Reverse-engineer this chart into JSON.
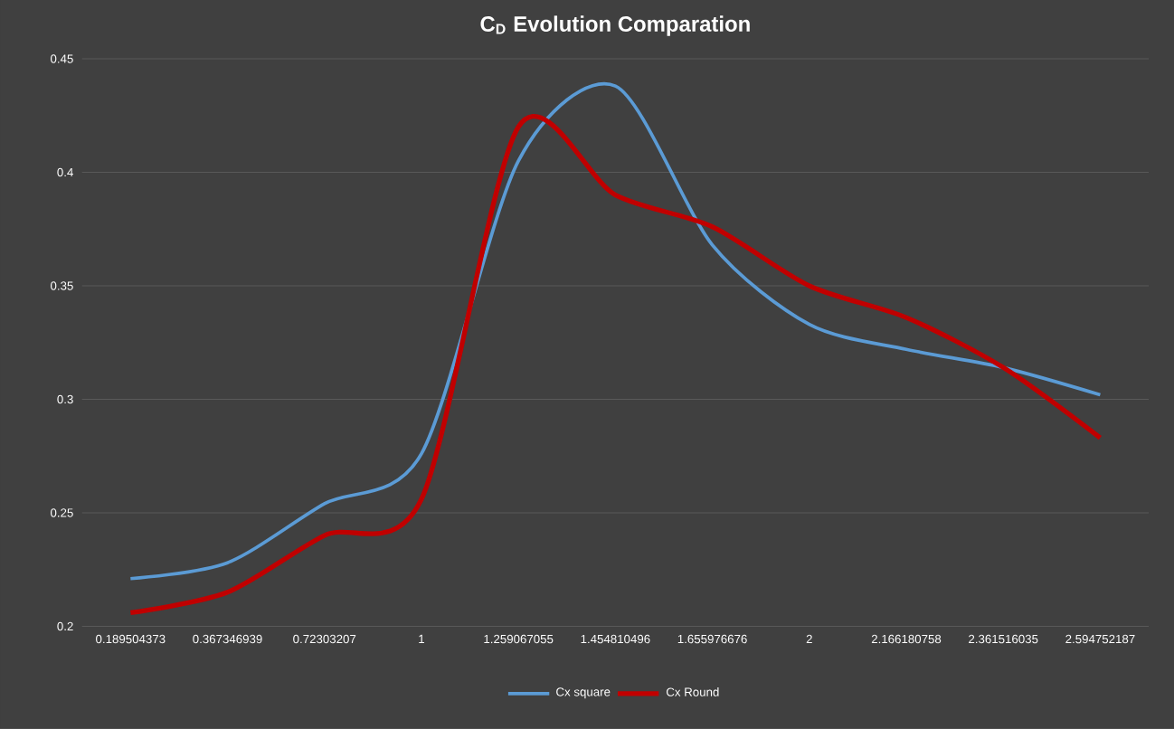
{
  "chart_data": {
    "type": "line",
    "title": "C$_{D}$ Evolution Comparation",
    "categories": [
      "0.189504373",
      "0.367346939",
      "0.72303207",
      "1",
      "1.259067055",
      "1.454810496",
      "1.655976676",
      "2",
      "2.166180758",
      "2.361516035",
      "2.594752187"
    ],
    "series": [
      {
        "name": "Cx square",
        "color": "#5b9bd5",
        "values": [
          0.221,
          0.228,
          0.254,
          0.276,
          0.405,
          0.438,
          0.368,
          0.333,
          0.322,
          0.314,
          0.302
        ]
      },
      {
        "name": "Cx Round",
        "color": "#c00000",
        "values": [
          0.206,
          0.215,
          0.24,
          0.256,
          0.42,
          0.39,
          0.376,
          0.35,
          0.336,
          0.314,
          0.283
        ]
      }
    ],
    "ylim": [
      0.2,
      0.45
    ],
    "yticks": [
      0.2,
      0.25,
      0.3,
      0.35,
      0.4,
      0.45
    ],
    "grid": "y",
    "legend": "bottom",
    "marker": "none",
    "line_style": "solid"
  }
}
